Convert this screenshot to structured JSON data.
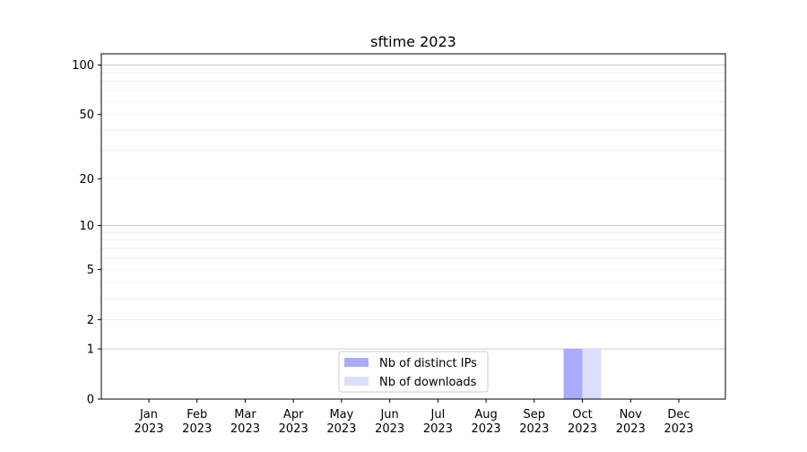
{
  "chart_data": {
    "type": "bar",
    "title": "sftime 2023",
    "xlabel": "",
    "ylabel": "",
    "yscale": "symlog",
    "ylim": [
      0,
      117
    ],
    "yticks": [
      0,
      1,
      2,
      5,
      10,
      20,
      50,
      100
    ],
    "ytick_labels": [
      "0",
      "1",
      "2",
      "5",
      "10",
      "20",
      "50",
      "100"
    ],
    "grid": true,
    "categories": [
      "Jan\n2023",
      "Feb\n2023",
      "Mar\n2023",
      "Apr\n2023",
      "May\n2023",
      "Jun\n2023",
      "Jul\n2023",
      "Aug\n2023",
      "Sep\n2023",
      "Oct\n2023",
      "Nov\n2023",
      "Dec\n2023"
    ],
    "category_lines": [
      [
        "Jan",
        "2023"
      ],
      [
        "Feb",
        "2023"
      ],
      [
        "Mar",
        "2023"
      ],
      [
        "Apr",
        "2023"
      ],
      [
        "May",
        "2023"
      ],
      [
        "Jun",
        "2023"
      ],
      [
        "Jul",
        "2023"
      ],
      [
        "Aug",
        "2023"
      ],
      [
        "Sep",
        "2023"
      ],
      [
        "Oct",
        "2023"
      ],
      [
        "Nov",
        "2023"
      ],
      [
        "Dec",
        "2023"
      ]
    ],
    "series": [
      {
        "name": "Nb of distinct IPs",
        "color": "#aaaaff",
        "values": [
          0,
          0,
          0,
          0,
          0,
          0,
          0,
          0,
          0,
          1,
          0,
          0
        ]
      },
      {
        "name": "Nb of downloads",
        "color": "#ddddff",
        "values": [
          0,
          0,
          0,
          0,
          0,
          0,
          0,
          0,
          0,
          1,
          0,
          0
        ]
      }
    ],
    "legend_position": "bottom-center"
  }
}
